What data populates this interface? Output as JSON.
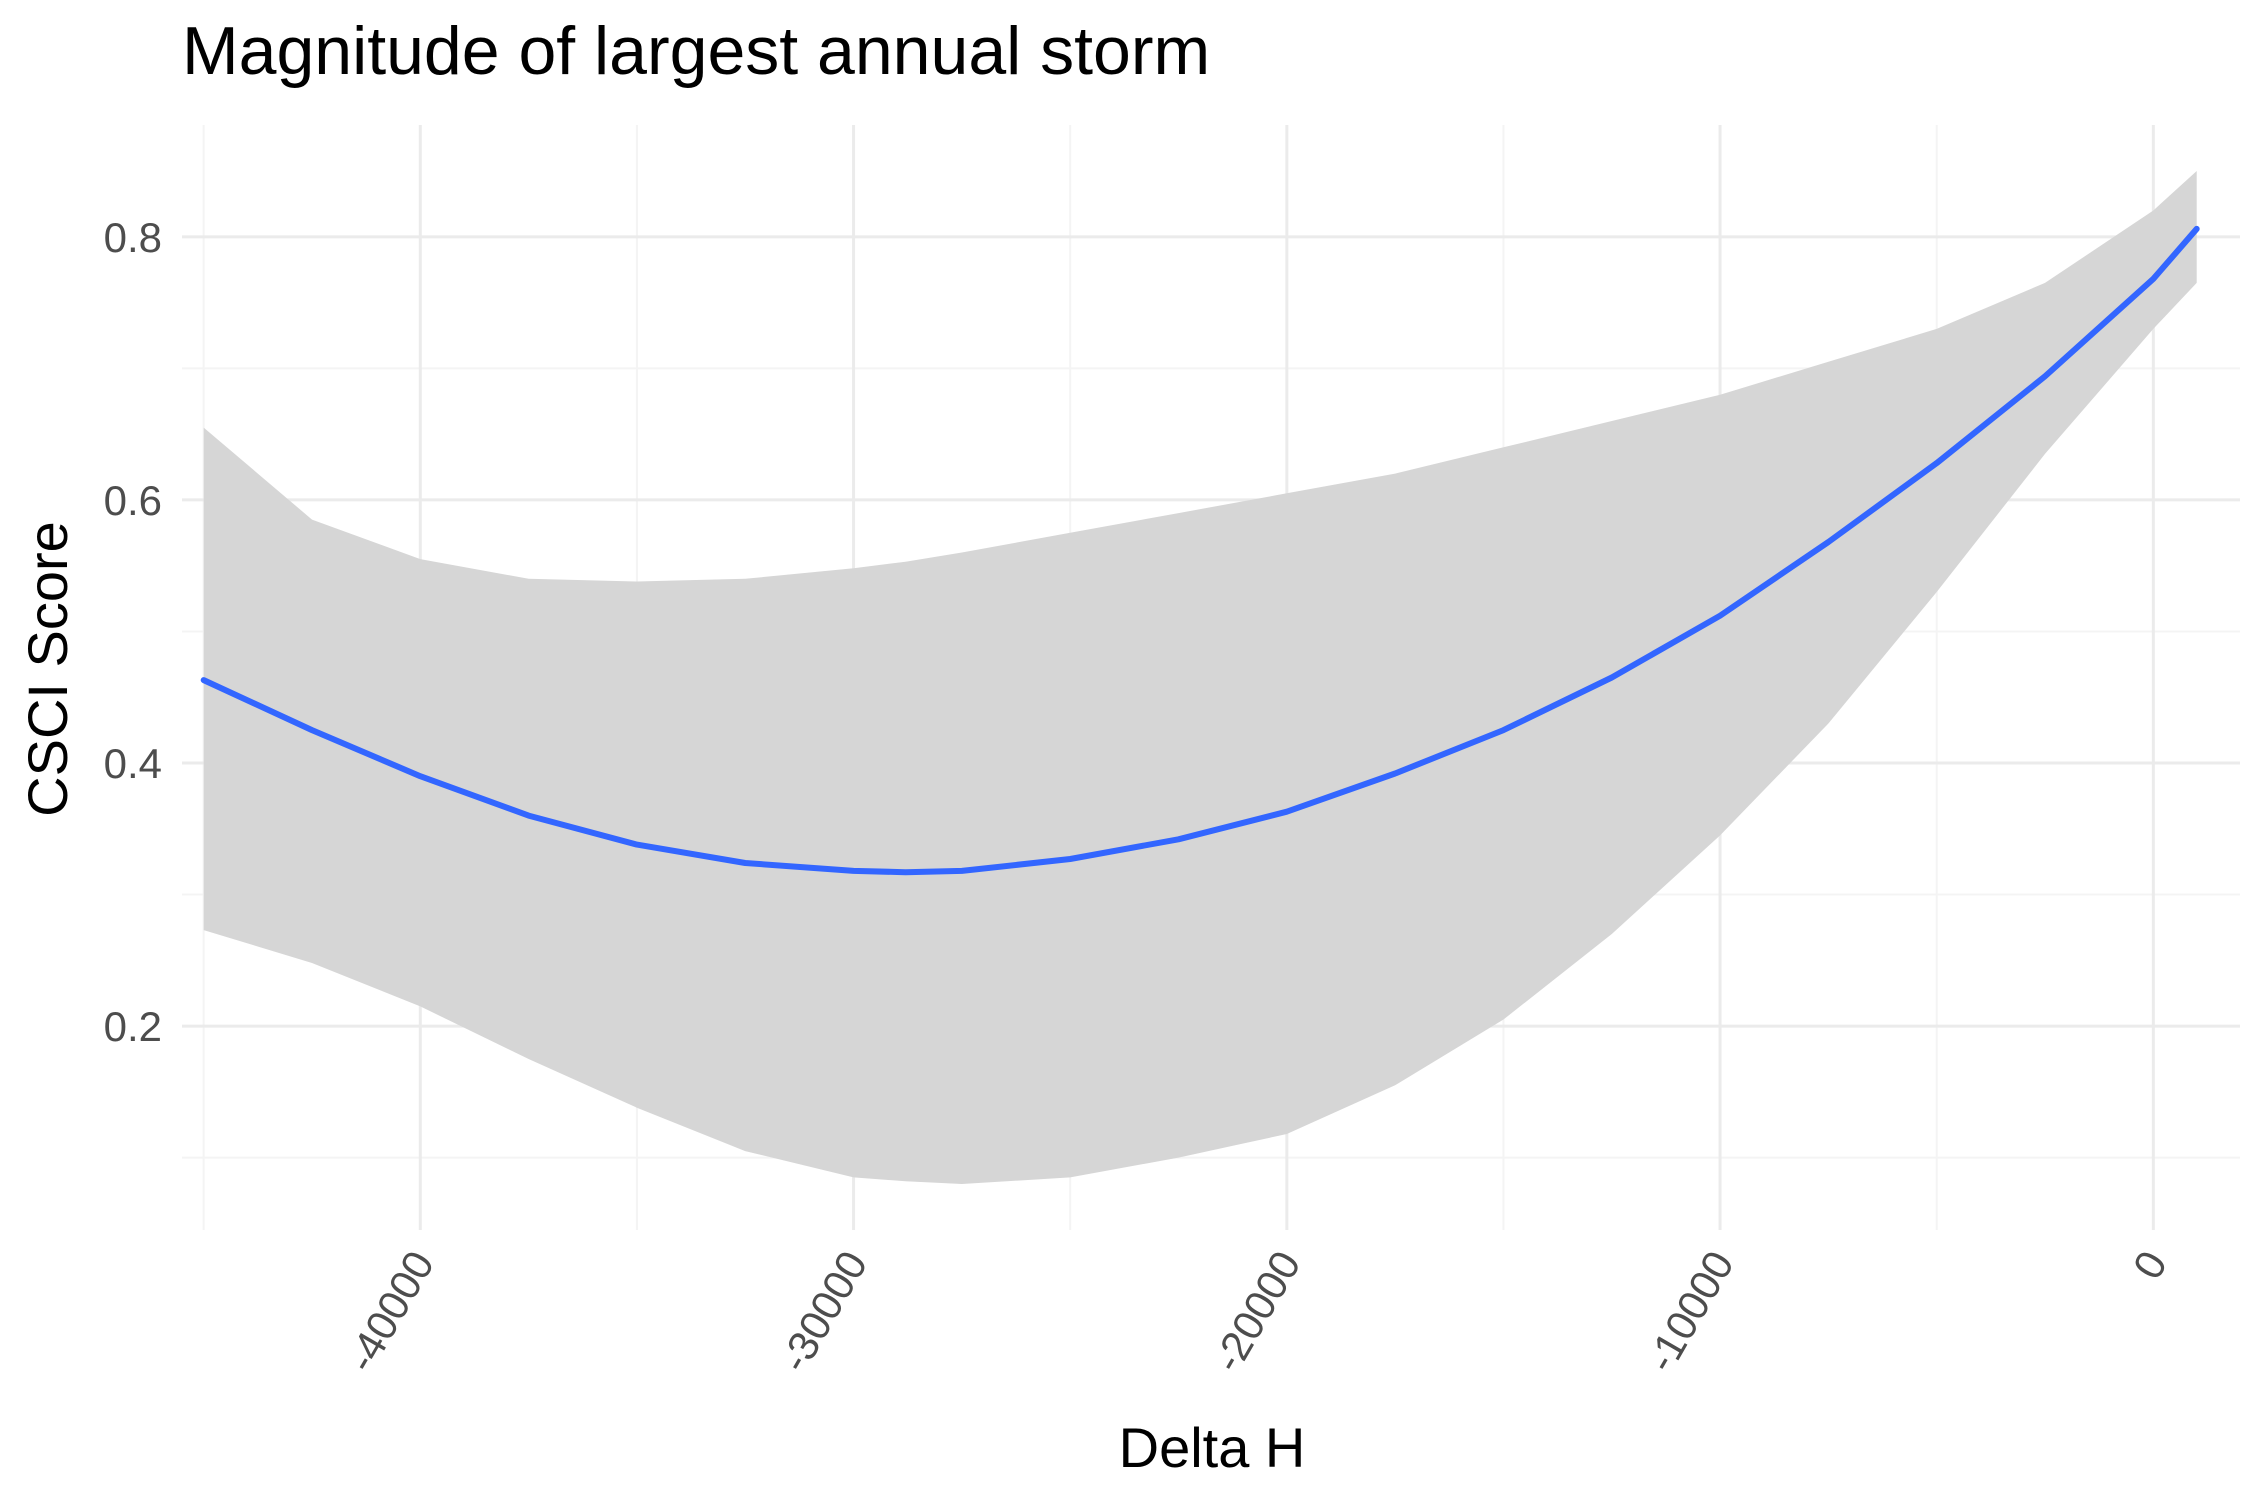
{
  "chart_data": {
    "type": "line",
    "title": "Magnitude of largest annual storm",
    "xlabel": "Delta H",
    "ylabel": "CSCI Score",
    "xlim": [
      -45500,
      2000
    ],
    "ylim": [
      0.045,
      0.885
    ],
    "x_ticks": [
      -40000,
      -30000,
      -20000,
      -10000,
      0
    ],
    "x_tick_labels": [
      "-40000",
      "-30000",
      "-20000",
      "-10000",
      "0"
    ],
    "x_minor_ticks": [
      -45000,
      -35000,
      -25000,
      -15000,
      -5000
    ],
    "y_ticks": [
      0.2,
      0.4,
      0.6,
      0.8
    ],
    "y_tick_labels": [
      "0.2",
      "0.4",
      "0.6",
      "0.8"
    ],
    "y_minor_ticks": [
      0.1,
      0.3,
      0.5,
      0.7
    ],
    "grid": true,
    "legend": "none",
    "series": [
      {
        "x": [
          -45000,
          -42500,
          -40000,
          -37500,
          -35000,
          -32500,
          -30000,
          -28800,
          -27500,
          -25000,
          -22500,
          -20000,
          -17500,
          -15000,
          -12500,
          -10000,
          -7500,
          -5000,
          -2500,
          0,
          1000
        ],
        "y": [
          0.463,
          0.425,
          0.39,
          0.36,
          0.338,
          0.324,
          0.318,
          0.317,
          0.318,
          0.327,
          0.342,
          0.363,
          0.392,
          0.425,
          0.465,
          0.512,
          0.568,
          0.628,
          0.694,
          0.768,
          0.806
        ],
        "ci_lower": [
          0.273,
          0.248,
          0.215,
          0.175,
          0.138,
          0.105,
          0.085,
          0.082,
          0.08,
          0.085,
          0.1,
          0.118,
          0.155,
          0.205,
          0.27,
          0.345,
          0.43,
          0.53,
          0.635,
          0.73,
          0.765
        ],
        "ci_upper": [
          0.655,
          0.585,
          0.555,
          0.54,
          0.538,
          0.54,
          0.548,
          0.553,
          0.56,
          0.575,
          0.59,
          0.605,
          0.62,
          0.64,
          0.66,
          0.68,
          0.705,
          0.73,
          0.765,
          0.82,
          0.85
        ]
      }
    ]
  },
  "colors": {
    "line": "#3366ff",
    "ribbon": "#d6d6d6",
    "grid_major": "#ebebeb",
    "grid_minor": "#f4f4f4",
    "tick_text": "#4d4d4d"
  }
}
